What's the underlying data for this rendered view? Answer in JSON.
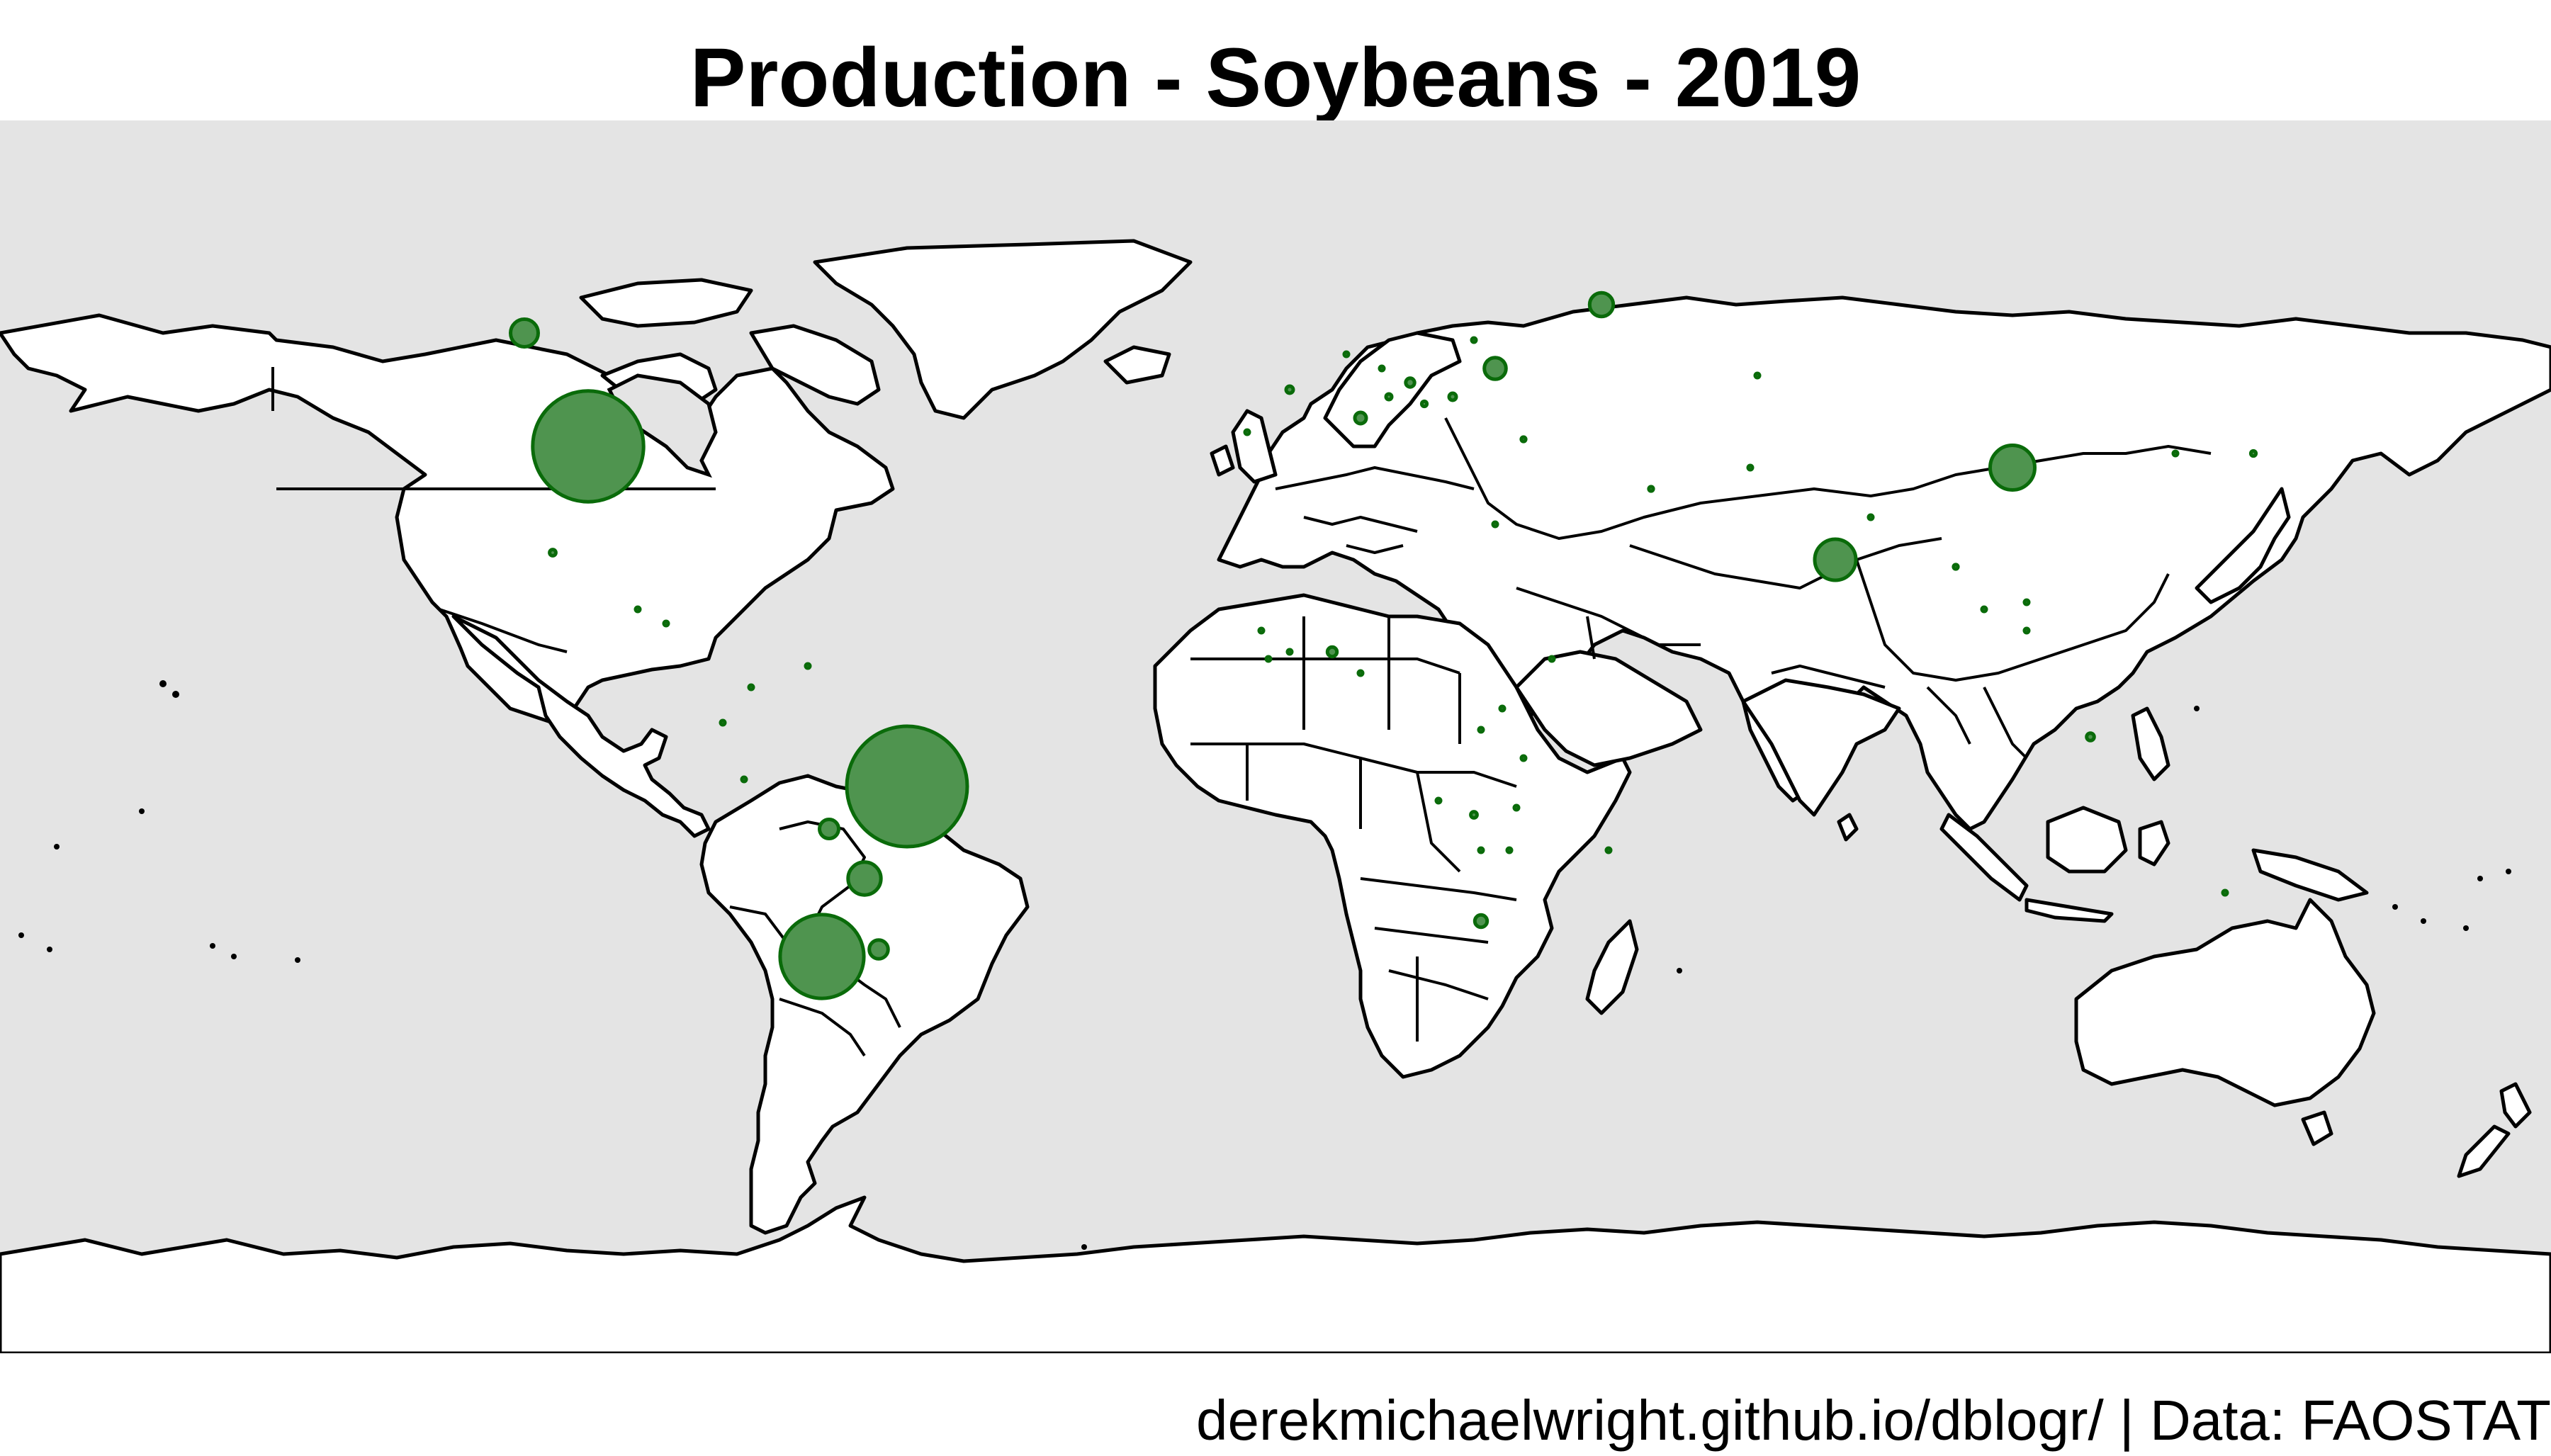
{
  "title": "Production - Soybeans - 2019",
  "caption": "derekmichaelwright.github.io/dblogr/ | Data: FAOSTAT",
  "colors": {
    "ocean": "#e4e4e4",
    "land": "#ffffff",
    "outline": "#000000",
    "bubble_fill": "#4f944f",
    "bubble_stroke": "#0a6b0a"
  },
  "chart_data": {
    "type": "bubble-map",
    "projection": "equirectangular",
    "title": "Production - Soybeans - 2019",
    "legend": "none",
    "points": [
      {
        "lon": -97,
        "lat": 38,
        "value": 96.8
      },
      {
        "lon": -52,
        "lat": -10,
        "value": 114.3
      },
      {
        "lon": -64,
        "lat": -34,
        "value": 55.3
      },
      {
        "lon": 104,
        "lat": 35,
        "value": 15.7
      },
      {
        "lon": 79,
        "lat": 22,
        "value": 13.3
      },
      {
        "lon": -106,
        "lat": 54,
        "value": 6.0
      },
      {
        "lon": 46,
        "lat": 58,
        "value": 4.4
      },
      {
        "lon": -58,
        "lat": -23,
        "value": 8.5
      },
      {
        "lon": 31,
        "lat": 49,
        "value": 3.7
      },
      {
        "lon": -63,
        "lat": -16,
        "value": 2.9
      },
      {
        "lon": -56,
        "lat": -33,
        "value": 2.8
      },
      {
        "lon": 29,
        "lat": -29,
        "value": 1.2
      },
      {
        "lon": 8,
        "lat": 9,
        "value": 0.7
      },
      {
        "lon": 12,
        "lat": 42,
        "value": 1.0
      },
      {
        "lon": 19,
        "lat": 47,
        "value": 0.6
      },
      {
        "lon": 25,
        "lat": 45,
        "value": 0.4
      },
      {
        "lon": 2,
        "lat": 46,
        "value": 0.4
      },
      {
        "lon": 10,
        "lat": 51,
        "value": 0.1
      },
      {
        "lon": 16,
        "lat": 45,
        "value": 0.25
      },
      {
        "lon": 21,
        "lat": 44,
        "value": 0.2
      },
      {
        "lon": 15,
        "lat": 49,
        "value": 0.05
      },
      {
        "lon": 28,
        "lat": 53,
        "value": 0.05
      },
      {
        "lon": 35,
        "lat": 39,
        "value": 0.15
      },
      {
        "lon": 68,
        "lat": 48,
        "value": 0.1
      },
      {
        "lon": 53,
        "lat": 32,
        "value": 0.15
      },
      {
        "lon": 115,
        "lat": -3,
        "value": 0.45
      },
      {
        "lon": 127,
        "lat": 37,
        "value": 0.1
      },
      {
        "lon": 138,
        "lat": 37,
        "value": 0.2
      },
      {
        "lon": 100,
        "lat": 15,
        "value": 0.05
      },
      {
        "lon": 96,
        "lat": 21,
        "value": 0.15
      },
      {
        "lon": 106,
        "lat": 16,
        "value": 0.05
      },
      {
        "lon": 106,
        "lat": 12,
        "value": 0.05
      },
      {
        "lon": 84,
        "lat": 28,
        "value": 0.05
      },
      {
        "lon": 67,
        "lat": 35,
        "value": 0.05
      },
      {
        "lon": 31,
        "lat": 27,
        "value": 0.05
      },
      {
        "lon": 39,
        "lat": 8,
        "value": 0.1
      },
      {
        "lon": -102,
        "lat": 23,
        "value": 0.3
      },
      {
        "lon": -74,
        "lat": 4,
        "value": 0.05
      },
      {
        "lon": -66,
        "lat": 7,
        "value": 0.05
      },
      {
        "lon": -86,
        "lat": 13,
        "value": 0.05
      },
      {
        "lon": -90,
        "lat": 15,
        "value": 0.05
      },
      {
        "lon": -75,
        "lat": -9,
        "value": 0.05
      },
      {
        "lon": -78,
        "lat": -1,
        "value": 0.05
      },
      {
        "lon": -1,
        "lat": 8,
        "value": 0.1
      },
      {
        "lon": -2,
        "lat": 12,
        "value": 0.05
      },
      {
        "lon": 2,
        "lat": 9,
        "value": 0.05
      },
      {
        "lon": 12,
        "lat": 6,
        "value": 0.05
      },
      {
        "lon": 29,
        "lat": -2,
        "value": 0.05
      },
      {
        "lon": 32,
        "lat": 1,
        "value": 0.05
      },
      {
        "lon": 34,
        "lat": -13,
        "value": 0.1
      },
      {
        "lon": 29,
        "lat": -19,
        "value": 0.05
      },
      {
        "lon": 28,
        "lat": -14,
        "value": 0.3
      },
      {
        "lon": 47,
        "lat": -19,
        "value": 0.05
      },
      {
        "lon": 23,
        "lat": -12,
        "value": 0.05
      },
      {
        "lon": 35,
        "lat": -6,
        "value": 0.05
      },
      {
        "lon": 33,
        "lat": -19,
        "value": 0.05
      },
      {
        "lon": 134,
        "lat": -25,
        "value": 0.05
      },
      {
        "lon": -4,
        "lat": 40,
        "value": 0.05
      }
    ]
  }
}
